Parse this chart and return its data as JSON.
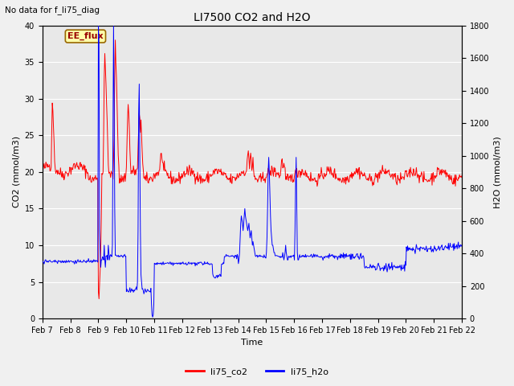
{
  "title": "LI7500 CO2 and H2O",
  "top_left_text": "No data for f_li75_diag",
  "xlabel": "Time",
  "ylabel_left": "CO2 (mmol/m3)",
  "ylabel_right": "H2O (mmol/m3)",
  "annotation_box": "EE_flux",
  "ylim_left": [
    0,
    40
  ],
  "ylim_right": [
    0,
    1800
  ],
  "yticks_left": [
    0,
    5,
    10,
    15,
    20,
    25,
    30,
    35,
    40
  ],
  "yticks_right": [
    0,
    200,
    400,
    600,
    800,
    1000,
    1200,
    1400,
    1600,
    1800
  ],
  "xtick_labels": [
    "Feb 7",
    "Feb 8",
    "Feb 9",
    "Feb 10",
    "Feb 11",
    "Feb 12",
    "Feb 13",
    "Feb 14",
    "Feb 15",
    "Feb 16",
    "Feb 17",
    "Feb 18",
    "Feb 19",
    "Feb 20",
    "Feb 21",
    "Feb 22"
  ],
  "fig_bg_color": "#f0f0f0",
  "plot_bg_color": "#e8e8e8",
  "grid_color": "#ffffff",
  "legend_entries": [
    "li75_co2",
    "li75_h2o"
  ],
  "legend_colors": [
    "red",
    "blue"
  ],
  "co2_color": "red",
  "h2o_color": "blue",
  "n_days": 16,
  "points_per_day": 48,
  "annotation_facecolor": "#ffffaa",
  "annotation_edgecolor": "#996600",
  "annotation_textcolor": "#990000"
}
